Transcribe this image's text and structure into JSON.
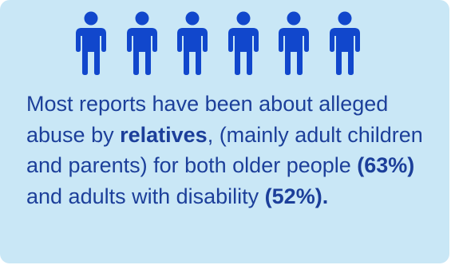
{
  "icons": {
    "count": 6,
    "name": "person-icon",
    "color": "#1147cc"
  },
  "text": {
    "part1": "Most reports have been about alleged abuse by ",
    "bold1": "relatives",
    "part2": ", (mainly adult children and parents) for both older people ",
    "bold2": "(63%)",
    "part3": " and adults with disability ",
    "bold3": "(52%).",
    "color": "#1c3f9a"
  },
  "card": {
    "background": "#c9e7f6"
  }
}
